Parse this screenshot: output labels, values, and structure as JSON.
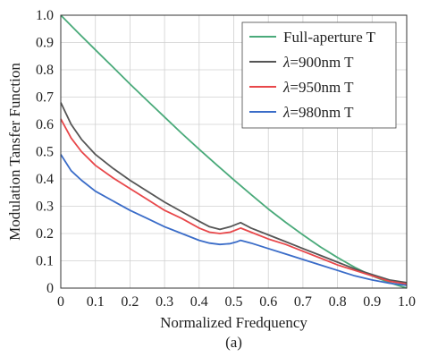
{
  "chart_data": {
    "type": "line",
    "title": "",
    "xlabel": "Normalized Fredquency",
    "ylabel": "Modulation Tansfer Function",
    "caption": "(a)",
    "xlim": [
      0,
      1.0
    ],
    "ylim": [
      0,
      1.0
    ],
    "xticks": [
      "0",
      "0.1",
      "0.2",
      "0.3",
      "0.4",
      "0.5",
      "0.6",
      "0.7",
      "0.8",
      "0.9",
      "1.0"
    ],
    "yticks": [
      "0",
      "0.1",
      "0.2",
      "0.3",
      "0.4",
      "0.5",
      "0.6",
      "0.7",
      "0.8",
      "0.9",
      "1.0"
    ],
    "grid": true,
    "legend_position": "top-right",
    "series": [
      {
        "name": "Full-aperture T",
        "color": "#4aaa7a",
        "x": [
          0,
          0.05,
          0.1,
          0.15,
          0.2,
          0.25,
          0.3,
          0.35,
          0.4,
          0.45,
          0.5,
          0.55,
          0.6,
          0.65,
          0.7,
          0.75,
          0.8,
          0.85,
          0.9,
          0.95,
          1.0
        ],
        "y": [
          1.0,
          0.936,
          0.873,
          0.811,
          0.748,
          0.687,
          0.627,
          0.567,
          0.509,
          0.452,
          0.397,
          0.343,
          0.29,
          0.241,
          0.195,
          0.151,
          0.112,
          0.076,
          0.045,
          0.02,
          0.0
        ]
      },
      {
        "name": "λ=900nm T",
        "name_prefix": "λ",
        "name_suffix": "=900nm T",
        "color": "#555555",
        "x": [
          0,
          0.03,
          0.06,
          0.1,
          0.15,
          0.2,
          0.25,
          0.3,
          0.35,
          0.4,
          0.43,
          0.46,
          0.49,
          0.51,
          0.52,
          0.55,
          0.6,
          0.65,
          0.7,
          0.75,
          0.8,
          0.85,
          0.9,
          0.95,
          1.0
        ],
        "y": [
          0.68,
          0.6,
          0.545,
          0.49,
          0.44,
          0.395,
          0.355,
          0.315,
          0.28,
          0.245,
          0.225,
          0.215,
          0.225,
          0.235,
          0.24,
          0.22,
          0.195,
          0.17,
          0.145,
          0.12,
          0.095,
          0.07,
          0.05,
          0.03,
          0.02
        ]
      },
      {
        "name": "λ=950nm T",
        "name_prefix": "λ",
        "name_suffix": "=950nm T",
        "color": "#e8474a",
        "x": [
          0,
          0.03,
          0.06,
          0.1,
          0.15,
          0.2,
          0.25,
          0.3,
          0.35,
          0.4,
          0.43,
          0.46,
          0.49,
          0.51,
          0.52,
          0.55,
          0.6,
          0.65,
          0.7,
          0.75,
          0.8,
          0.85,
          0.9,
          0.95,
          1.0
        ],
        "y": [
          0.62,
          0.55,
          0.5,
          0.45,
          0.405,
          0.365,
          0.325,
          0.285,
          0.255,
          0.22,
          0.205,
          0.2,
          0.205,
          0.215,
          0.22,
          0.205,
          0.18,
          0.16,
          0.135,
          0.11,
          0.085,
          0.065,
          0.045,
          0.025,
          0.015
        ]
      },
      {
        "name": "λ=980nm T",
        "name_prefix": "λ",
        "name_suffix": "=980nm T",
        "color": "#3a6cc8",
        "x": [
          0,
          0.03,
          0.06,
          0.1,
          0.15,
          0.2,
          0.25,
          0.3,
          0.35,
          0.4,
          0.43,
          0.46,
          0.49,
          0.51,
          0.52,
          0.55,
          0.6,
          0.65,
          0.7,
          0.75,
          0.8,
          0.85,
          0.9,
          0.95,
          1.0
        ],
        "y": [
          0.49,
          0.43,
          0.395,
          0.355,
          0.32,
          0.285,
          0.255,
          0.225,
          0.2,
          0.175,
          0.165,
          0.16,
          0.163,
          0.17,
          0.175,
          0.165,
          0.145,
          0.125,
          0.105,
          0.085,
          0.065,
          0.045,
          0.03,
          0.018,
          0.01
        ]
      }
    ]
  }
}
